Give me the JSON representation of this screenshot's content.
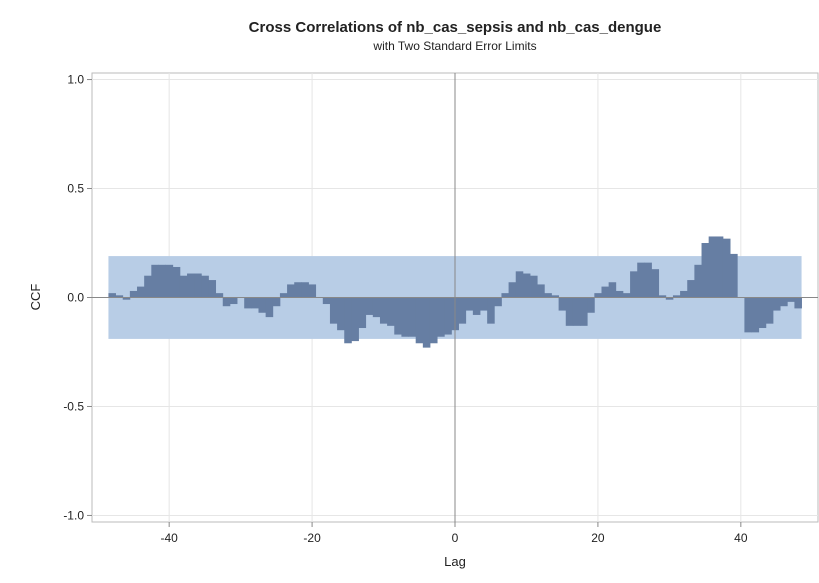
{
  "chart_data": {
    "type": "bar",
    "title": "Cross Correlations of nb_cas_sepsis and nb_cas_dengue",
    "subtitle": "with Two Standard Error Limits",
    "x_label": "Lag",
    "y_label": "CCF",
    "x": [
      -48,
      -47,
      -46,
      -45,
      -44,
      -43,
      -42,
      -41,
      -40,
      -39,
      -38,
      -37,
      -36,
      -35,
      -34,
      -33,
      -32,
      -31,
      -30,
      -29,
      -28,
      -27,
      -26,
      -25,
      -24,
      -23,
      -22,
      -21,
      -20,
      -19,
      -18,
      -17,
      -16,
      -15,
      -14,
      -13,
      -12,
      -11,
      -10,
      -9,
      -8,
      -7,
      -6,
      -5,
      -4,
      -3,
      -2,
      -1,
      0,
      1,
      2,
      3,
      4,
      5,
      6,
      7,
      8,
      9,
      10,
      11,
      12,
      13,
      14,
      15,
      16,
      17,
      18,
      19,
      20,
      21,
      22,
      23,
      24,
      25,
      26,
      27,
      28,
      29,
      30,
      31,
      32,
      33,
      34,
      35,
      36,
      37,
      38,
      39,
      40,
      41,
      42,
      43,
      44,
      45,
      46,
      47,
      48
    ],
    "values": [
      0.02,
      0.01,
      -0.01,
      0.03,
      0.05,
      0.1,
      0.15,
      0.15,
      0.15,
      0.14,
      0.1,
      0.11,
      0.11,
      0.1,
      0.08,
      0.02,
      -0.04,
      -0.03,
      0.0,
      -0.05,
      -0.05,
      -0.07,
      -0.09,
      -0.04,
      0.02,
      0.06,
      0.07,
      0.07,
      0.06,
      0.0,
      -0.03,
      -0.12,
      -0.15,
      -0.21,
      -0.2,
      -0.14,
      -0.08,
      -0.09,
      -0.12,
      -0.13,
      -0.17,
      -0.18,
      -0.18,
      -0.21,
      -0.23,
      -0.21,
      -0.18,
      -0.17,
      -0.15,
      -0.12,
      -0.06,
      -0.08,
      -0.06,
      -0.12,
      -0.04,
      0.02,
      0.07,
      0.12,
      0.11,
      0.1,
      0.06,
      0.02,
      0.01,
      -0.06,
      -0.13,
      -0.13,
      -0.13,
      -0.07,
      0.02,
      0.05,
      0.07,
      0.03,
      0.02,
      0.12,
      0.16,
      0.16,
      0.13,
      0.01,
      -0.01,
      0.01,
      0.03,
      0.08,
      0.15,
      0.25,
      0.28,
      0.28,
      0.27,
      0.2,
      0.0,
      -0.16,
      -0.16,
      -0.14,
      -0.12,
      -0.06,
      -0.04,
      -0.02,
      -0.05
    ],
    "color": "#667ea3",
    "limits": {
      "upper": 0.19,
      "lower": -0.19,
      "color": "#b8cde6"
    },
    "xlim": [
      -50.8,
      50.8
    ],
    "ylim": [
      -1.03,
      1.03
    ],
    "xticks": [
      -40,
      -20,
      0,
      20,
      40
    ],
    "yticks": [
      {
        "value": 1.0,
        "label": "1.0"
      },
      {
        "value": 0.5,
        "label": "0.5"
      },
      {
        "value": 0,
        "label": "0.0"
      },
      {
        "value": -0.5,
        "label": "-0.5"
      },
      {
        "value": -1.0,
        "label": "-1.0"
      }
    ],
    "grid": true
  }
}
